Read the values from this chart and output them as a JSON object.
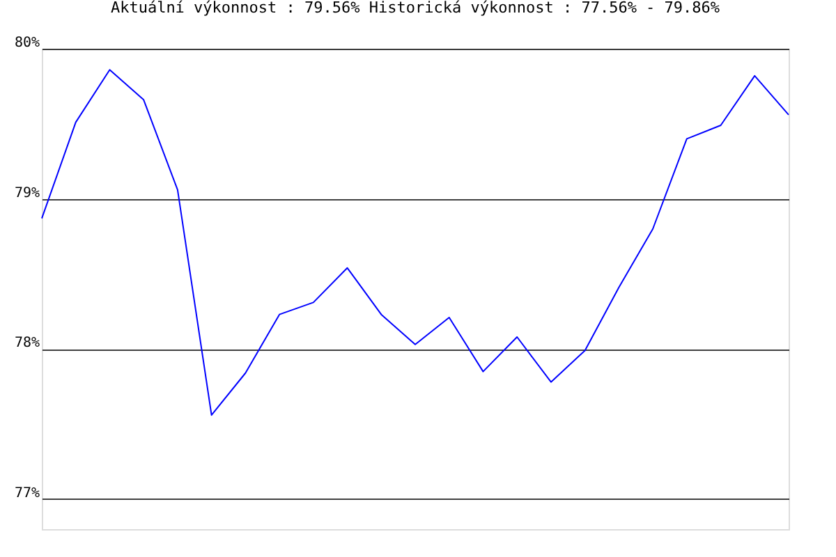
{
  "chart_data": {
    "type": "line",
    "title": "Aktuální výkonnost : 79.56%  Historická výkonnost : 77.56% - 79.86%",
    "categories": [
      null,
      null,
      null,
      null,
      null,
      null,
      null,
      null,
      null,
      null,
      null,
      null,
      null,
      null,
      null,
      null,
      null,
      null,
      null,
      null,
      null,
      null,
      null
    ],
    "series": [
      {
        "color": "#0000ff",
        "values": [
          78.87,
          79.51,
          79.86,
          79.66,
          79.06,
          77.56,
          77.84,
          78.23,
          78.31,
          78.54,
          78.23,
          78.03,
          78.21,
          77.85,
          78.08,
          77.78,
          77.99,
          78.41,
          78.8,
          79.4,
          79.49,
          79.82,
          79.56
        ]
      }
    ],
    "ylim": [
      76.8,
      80
    ],
    "yticks": [
      {
        "value": 77,
        "label": "77%"
      },
      {
        "value": 78,
        "label": "78%"
      },
      {
        "value": 79,
        "label": "79%"
      },
      {
        "value": 80,
        "label": "80%"
      }
    ],
    "grid": "y",
    "tick_labels": "y",
    "marker": "none",
    "line_style": "solid"
  }
}
